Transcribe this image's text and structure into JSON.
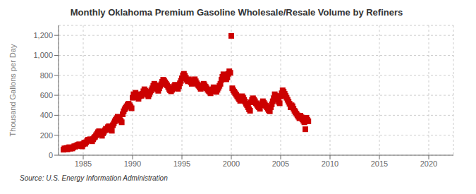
{
  "chart_data": {
    "type": "scatter",
    "title": "Monthly Oklahoma Premium Gasoline Wholesale/Resale Volume by Refiners",
    "ylabel": "Thousand Gallons per Day",
    "annotations": [
      "Source: U.S. Energy Information Administration"
    ],
    "color": "#cc0000",
    "marker": "square",
    "grid": true,
    "xlim": [
      1982.5,
      2022.5
    ],
    "xticks": [
      1985,
      1990,
      1995,
      2000,
      2005,
      2010,
      2015,
      2020
    ],
    "ylim": [
      0,
      1300
    ],
    "yticks": [
      0,
      200,
      400,
      600,
      800,
      {
        "value": 1000,
        "label": "1,000"
      },
      {
        "value": 1200,
        "label": "1,200"
      }
    ],
    "x": [
      1983.0,
      1983.1,
      1983.2,
      1983.3,
      1983.4,
      1983.5,
      1983.6,
      1983.7,
      1983.8,
      1983.9,
      1984.0,
      1984.1,
      1984.2,
      1984.3,
      1984.4,
      1984.5,
      1984.6,
      1984.7,
      1984.8,
      1984.9,
      1985.0,
      1985.1,
      1985.2,
      1985.3,
      1985.4,
      1985.5,
      1985.6,
      1985.7,
      1985.8,
      1985.9,
      1986.0,
      1986.1,
      1986.2,
      1986.3,
      1986.4,
      1986.5,
      1986.6,
      1986.7,
      1986.8,
      1986.9,
      1987.0,
      1987.1,
      1987.2,
      1987.3,
      1987.4,
      1987.5,
      1987.6,
      1987.7,
      1987.8,
      1987.9,
      1988.0,
      1988.1,
      1988.2,
      1988.3,
      1988.4,
      1988.5,
      1988.6,
      1988.7,
      1988.8,
      1988.9,
      1989.0,
      1989.1,
      1989.2,
      1989.3,
      1989.4,
      1989.5,
      1989.6,
      1989.7,
      1989.8,
      1989.9,
      1990.0,
      1990.1,
      1990.2,
      1990.3,
      1990.4,
      1990.5,
      1990.6,
      1990.7,
      1990.8,
      1990.9,
      1991.0,
      1991.1,
      1991.2,
      1991.3,
      1991.4,
      1991.5,
      1991.6,
      1991.7,
      1991.8,
      1991.9,
      1992.0,
      1992.1,
      1992.2,
      1992.3,
      1992.4,
      1992.5,
      1992.6,
      1992.7,
      1992.8,
      1992.9,
      1993.0,
      1993.1,
      1993.2,
      1993.3,
      1993.4,
      1993.5,
      1993.6,
      1993.7,
      1993.8,
      1993.9,
      1994.0,
      1994.1,
      1994.2,
      1994.3,
      1994.4,
      1994.5,
      1994.6,
      1994.7,
      1994.8,
      1994.9,
      1995.0,
      1995.1,
      1995.2,
      1995.3,
      1995.4,
      1995.5,
      1995.6,
      1995.7,
      1995.8,
      1995.9,
      1996.0,
      1996.1,
      1996.2,
      1996.3,
      1996.4,
      1996.5,
      1996.6,
      1996.7,
      1996.8,
      1996.9,
      1997.0,
      1997.1,
      1997.2,
      1997.3,
      1997.4,
      1997.5,
      1997.6,
      1997.7,
      1997.8,
      1997.9,
      1998.0,
      1998.1,
      1998.2,
      1998.3,
      1998.4,
      1998.5,
      1998.6,
      1998.7,
      1998.8,
      1998.9,
      1999.0,
      1999.1,
      1999.2,
      1999.3,
      1999.4,
      1999.5,
      1999.6,
      1999.7,
      1999.8,
      1999.9,
      2000.0,
      2000.1,
      2000.2,
      2000.3,
      2000.4,
      2000.5,
      2000.6,
      2000.7,
      2000.8,
      2000.9,
      2001.0,
      2001.1,
      2001.2,
      2001.3,
      2001.4,
      2001.5,
      2001.6,
      2001.7,
      2001.8,
      2001.9,
      2002.0,
      2002.1,
      2002.2,
      2002.3,
      2002.4,
      2002.5,
      2002.6,
      2002.7,
      2002.8,
      2002.9,
      2003.0,
      2003.1,
      2003.2,
      2003.3,
      2003.4,
      2003.5,
      2003.6,
      2003.7,
      2003.8,
      2003.9,
      2004.0,
      2004.1,
      2004.2,
      2004.3,
      2004.4,
      2004.5,
      2004.6,
      2004.7,
      2004.8,
      2004.9,
      2005.0,
      2005.1,
      2005.2,
      2005.3,
      2005.4,
      2005.5,
      2005.6,
      2005.7,
      2005.8,
      2005.9,
      2006.0,
      2006.1,
      2006.2,
      2006.3,
      2006.4,
      2006.5,
      2006.6,
      2006.7,
      2006.8,
      2006.9,
      2007.0,
      2007.1,
      2007.2,
      2007.3,
      2007.4,
      2007.5,
      2007.6,
      2007.7,
      2007.8
    ],
    "values": [
      55,
      68,
      62,
      72,
      58,
      75,
      80,
      65,
      72,
      68,
      80,
      90,
      85,
      95,
      100,
      105,
      110,
      98,
      92,
      88,
      110,
      125,
      115,
      130,
      145,
      155,
      148,
      160,
      150,
      140,
      160,
      175,
      185,
      200,
      215,
      230,
      240,
      222,
      210,
      195,
      220,
      235,
      250,
      265,
      255,
      280,
      290,
      270,
      260,
      245,
      300,
      320,
      340,
      355,
      370,
      385,
      375,
      360,
      345,
      330,
      410,
      440,
      460,
      475,
      490,
      505,
      515,
      500,
      485,
      470,
      575,
      610,
      590,
      625,
      605,
      580,
      565,
      590,
      610,
      595,
      615,
      640,
      660,
      645,
      625,
      605,
      590,
      610,
      635,
      650,
      670,
      695,
      715,
      700,
      680,
      660,
      645,
      670,
      695,
      710,
      735,
      755,
      745,
      730,
      715,
      700,
      685,
      665,
      650,
      640,
      655,
      670,
      690,
      705,
      695,
      680,
      665,
      690,
      720,
      745,
      770,
      800,
      815,
      795,
      775,
      755,
      740,
      760,
      745,
      730,
      715,
      730,
      750,
      760,
      740,
      720,
      705,
      695,
      680,
      665,
      675,
      695,
      715,
      700,
      685,
      670,
      655,
      645,
      635,
      620,
      640,
      660,
      680,
      665,
      650,
      635,
      655,
      675,
      695,
      715,
      755,
      785,
      810,
      795,
      775,
      760,
      780,
      815,
      840,
      825,
      1195,
      670,
      650,
      635,
      620,
      605,
      590,
      575,
      560,
      545,
      570,
      590,
      575,
      555,
      535,
      515,
      500,
      480,
      460,
      445,
      530,
      555,
      570,
      555,
      540,
      520,
      505,
      490,
      480,
      465,
      500,
      520,
      540,
      525,
      510,
      495,
      480,
      465,
      450,
      440,
      480,
      510,
      540,
      570,
      610,
      595,
      575,
      555,
      535,
      520,
      590,
      620,
      650,
      635,
      615,
      595,
      575,
      555,
      535,
      515,
      480,
      500,
      490,
      465,
      445,
      430,
      415,
      400,
      385,
      370,
      395,
      380,
      360,
      345,
      330,
      260,
      375,
      355,
      340
    ]
  }
}
